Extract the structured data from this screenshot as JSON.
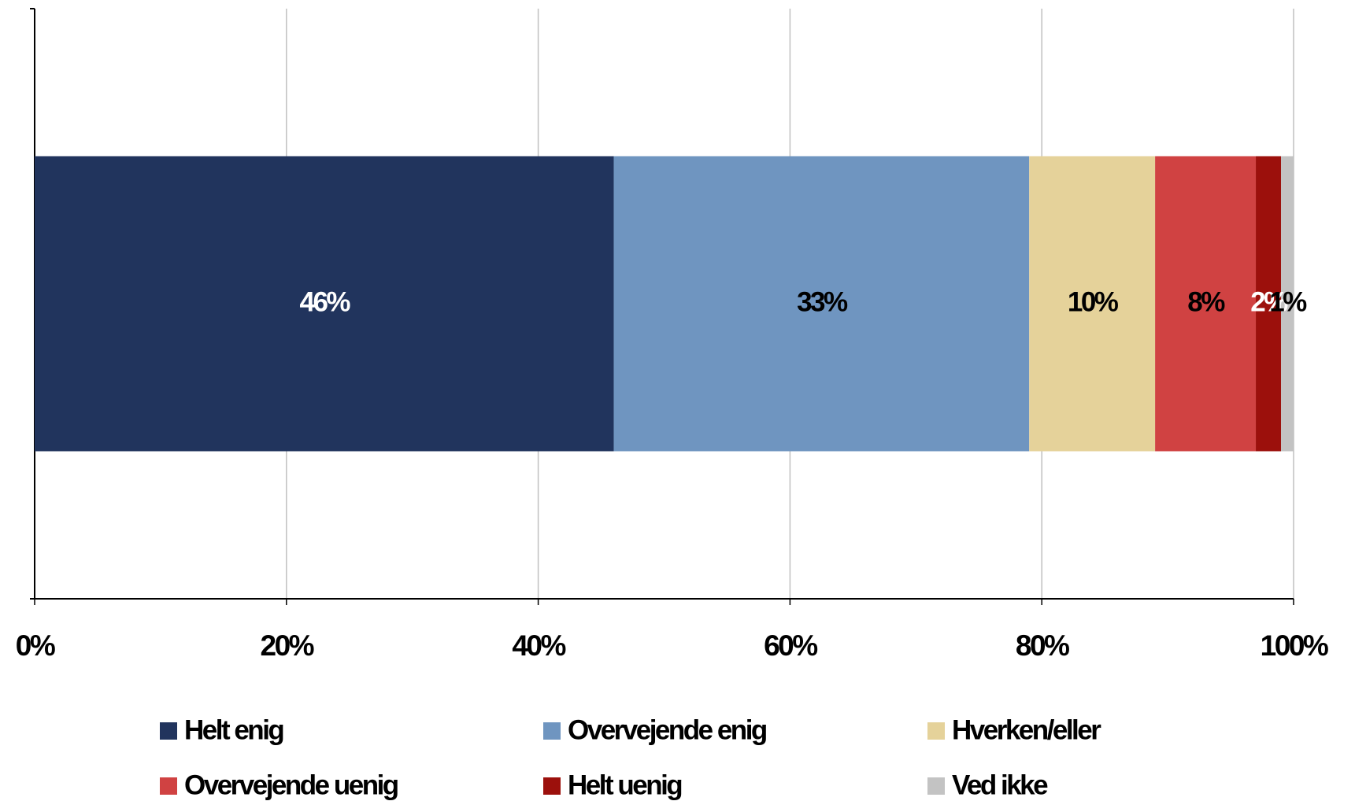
{
  "chart_data": {
    "type": "stacked_bar_horizontal",
    "categories": [
      null
    ],
    "series": [
      {
        "name": "Helt enig",
        "color": "#21345d",
        "values": [
          46
        ],
        "value_labels": [
          "46%"
        ]
      },
      {
        "name": "Overvejende enig",
        "color": "#6f95c0",
        "values": [
          33
        ],
        "value_labels": [
          "33%"
        ]
      },
      {
        "name": "Hverken/eller",
        "color": "#e5d29a",
        "values": [
          10
        ],
        "value_labels": [
          "10%"
        ]
      },
      {
        "name": "Overvejende uenig",
        "color": "#d04242",
        "values": [
          8
        ],
        "value_labels": [
          "8%"
        ]
      },
      {
        "name": "Helt uenig",
        "color": "#9c100c",
        "values": [
          2
        ],
        "value_labels": [
          "2%"
        ]
      },
      {
        "name": "Ved ikke",
        "color": "#c3c3c3",
        "values": [
          1
        ],
        "value_labels": [
          "1%"
        ]
      }
    ],
    "xlim": [
      0,
      100
    ],
    "xticks": [
      {
        "value": 0,
        "label": "0%"
      },
      {
        "value": 20,
        "label": "20%"
      },
      {
        "value": 40,
        "label": "40%"
      },
      {
        "value": 60,
        "label": "60%"
      },
      {
        "value": 80,
        "label": "80%"
      },
      {
        "value": 100,
        "label": "100%"
      }
    ],
    "grid": true
  }
}
